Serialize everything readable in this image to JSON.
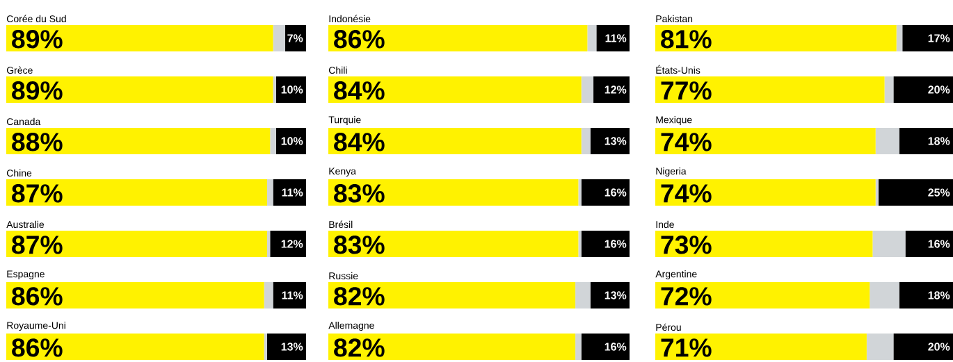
{
  "chart_data": [
    {
      "type": "bar",
      "orientation": "horizontal",
      "stacked": true,
      "xlim": [
        0,
        100
      ],
      "tick_labels": "y",
      "categories": [
        "Corée du Sud",
        "Grèce",
        "Canada",
        "Chine",
        "Australie",
        "Espagne",
        "Royaume-Uni"
      ],
      "series": [
        {
          "color": "#fff200",
          "values": [
            89,
            89,
            88,
            87,
            87,
            86,
            86
          ],
          "value_labels": [
            "89%",
            "89%",
            "88%",
            "87%",
            "87%",
            "86%",
            "86%"
          ]
        },
        {
          "color": "#d1d5d8",
          "values": [
            4,
            1,
            2,
            2,
            1,
            3,
            1
          ]
        },
        {
          "color": "#000000",
          "values": [
            7,
            10,
            10,
            11,
            12,
            11,
            13
          ],
          "value_labels": [
            "7%",
            "10%",
            "10%",
            "11%",
            "12%",
            "11%",
            "13%"
          ]
        }
      ]
    },
    {
      "type": "bar",
      "orientation": "horizontal",
      "stacked": true,
      "xlim": [
        0,
        100
      ],
      "tick_labels": "y",
      "categories": [
        "Indonésie",
        "Chili",
        "Turquie",
        "Kenya",
        "Brésil",
        "Russie",
        "Allemagne"
      ],
      "series": [
        {
          "color": "#fff200",
          "values": [
            86,
            84,
            84,
            83,
            83,
            82,
            82
          ],
          "value_labels": [
            "86%",
            "84%",
            "84%",
            "83%",
            "83%",
            "82%",
            "82%"
          ]
        },
        {
          "color": "#d1d5d8",
          "values": [
            3,
            4,
            3,
            1,
            1,
            5,
            2
          ]
        },
        {
          "color": "#000000",
          "values": [
            11,
            12,
            13,
            16,
            16,
            13,
            16
          ],
          "value_labels": [
            "11%",
            "12%",
            "13%",
            "16%",
            "16%",
            "13%",
            "16%"
          ]
        }
      ]
    },
    {
      "type": "bar",
      "orientation": "horizontal",
      "stacked": true,
      "xlim": [
        0,
        100
      ],
      "tick_labels": "y",
      "categories": [
        "Pakistan",
        "États-Unis",
        "Mexique",
        "Nigeria",
        "Inde",
        "Argentine",
        "Pérou"
      ],
      "series": [
        {
          "color": "#fff200",
          "values": [
            81,
            77,
            74,
            74,
            73,
            72,
            71
          ],
          "value_labels": [
            "81%",
            "77%",
            "74%",
            "74%",
            "73%",
            "72%",
            "71%"
          ]
        },
        {
          "color": "#d1d5d8",
          "values": [
            2,
            3,
            8,
            1,
            11,
            10,
            9
          ]
        },
        {
          "color": "#000000",
          "values": [
            17,
            20,
            18,
            25,
            16,
            18,
            20
          ],
          "value_labels": [
            "17%",
            "20%",
            "18%",
            "25%",
            "16%",
            "18%",
            "20%"
          ]
        }
      ]
    }
  ]
}
